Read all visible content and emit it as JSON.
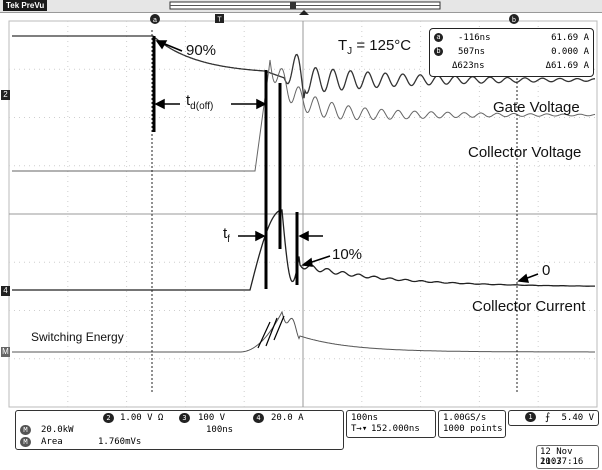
{
  "topbar": {
    "tek_label": "Tek PreVu"
  },
  "markers": {
    "cursor_a": "a",
    "cursor_b": "b",
    "trigger": "T"
  },
  "readout": {
    "row_a_time": "-116ns",
    "row_a_value": "61.69 A",
    "row_b_time": "507ns",
    "row_b_value": "0.000 A",
    "delta_time": "Δ623ns",
    "delta_value": "Δ61.69 A"
  },
  "annotations": {
    "tj": "T",
    "tj_sub": "J",
    "tj_rest": " = 125°C",
    "pct90": "90%",
    "td": "t",
    "td_sub": "d(off)",
    "tf": "t",
    "tf_sub": "f",
    "pct10": "10%",
    "zero": "0",
    "gate_voltage": "Gate Voltage",
    "collector_voltage": "Collector Voltage",
    "collector_current": "Collector Current",
    "switching_energy": "Switching Energy"
  },
  "channels": {
    "ch2_num": "2",
    "ch2_scale": "1.00 V Ω",
    "ch3_num": "3",
    "ch3_scale": "100 V",
    "ch4_num": "4",
    "ch4_scale": "20.0 A",
    "math_label": "M",
    "math_scale": "20.0kW",
    "math_time": "100ns",
    "meas_label": "M",
    "meas_name": "Area",
    "meas_value": "1.760mVs"
  },
  "timebase": {
    "scale": "100ns",
    "position": "152.000ns"
  },
  "acquisition": {
    "rate": "1.00GS/s",
    "points": "1000 points"
  },
  "trigger": {
    "channel": "1",
    "level": "5.40 V"
  },
  "datetime": {
    "date": "12 Nov 2007",
    "time": "11:37:16"
  },
  "left_markers": {
    "ch2": "2",
    "ch4": "4",
    "math": "M"
  }
}
